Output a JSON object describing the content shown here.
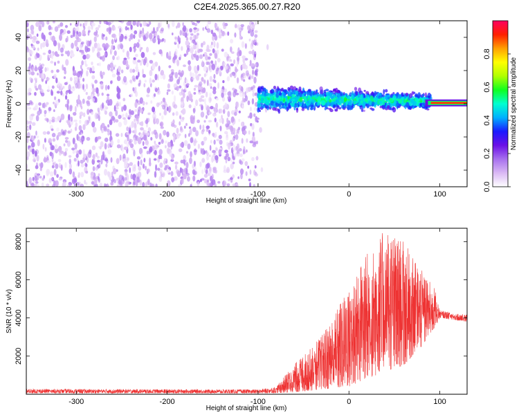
{
  "title": "C2E4.2025.365.00.27.R20",
  "chart_data": [
    {
      "type": "heatmap",
      "name": "spectrogram",
      "xlabel": "Height of straight line (km)",
      "ylabel": "Frequency (Hz)",
      "xlim": [
        -355,
        130
      ],
      "ylim": [
        -50,
        50
      ],
      "xticks": [
        -300,
        -200,
        -100,
        0,
        100
      ],
      "yticks": [
        -40,
        -20,
        0,
        20,
        40
      ],
      "colorbar": {
        "label": "Normalized spectral amplitude",
        "range": [
          0,
          1
        ],
        "ticks": [
          0.0,
          0.2,
          0.4,
          0.6,
          0.8
        ],
        "colormap": [
          "#ffffff",
          "#d9b8f4",
          "#a770ee",
          "#6a0fe6",
          "#1a1aff",
          "#00b0ff",
          "#00ffd0",
          "#10ff20",
          "#b0ff00",
          "#ffff00",
          "#ffa000",
          "#ff2000",
          "#ff0060"
        ]
      },
      "regions": [
        {
          "name": "noise",
          "x_range": [
            -355,
            -100
          ],
          "freq_range": [
            -50,
            50
          ],
          "amplitude": 0.08
        },
        {
          "name": "signal",
          "x_range": [
            -100,
            90
          ],
          "freq_center": 3,
          "freq_half_width": 7,
          "amplitude": 0.3
        },
        {
          "name": "tone",
          "x_range": [
            90,
            130
          ],
          "freq_center": 0.5,
          "amplitude": 0.9
        }
      ]
    },
    {
      "type": "line",
      "name": "snr",
      "xlabel": "Height of straight line (km)",
      "ylabel": "SNR (10 * v/v)",
      "xlim": [
        -355,
        130
      ],
      "ylim": [
        0,
        8700
      ],
      "xticks": [
        -300,
        -200,
        -100,
        0,
        100
      ],
      "yticks": [
        2000,
        4000,
        6000,
        8000
      ],
      "color": "#ee3333",
      "envelope": [
        {
          "x": -355,
          "low": 50,
          "high": 280
        },
        {
          "x": -100,
          "low": 50,
          "high": 250
        },
        {
          "x": -80,
          "low": 60,
          "high": 400
        },
        {
          "x": -60,
          "low": 100,
          "high": 1600
        },
        {
          "x": -40,
          "low": 200,
          "high": 2500
        },
        {
          "x": -20,
          "low": 300,
          "high": 3800
        },
        {
          "x": 0,
          "low": 400,
          "high": 5800
        },
        {
          "x": 20,
          "low": 800,
          "high": 7500
        },
        {
          "x": 40,
          "low": 1200,
          "high": 8700
        },
        {
          "x": 60,
          "low": 1500,
          "high": 8000
        },
        {
          "x": 80,
          "low": 2500,
          "high": 6500
        },
        {
          "x": 95,
          "low": 3500,
          "high": 5500
        },
        {
          "x": 100,
          "low": 4000,
          "high": 4400
        },
        {
          "x": 130,
          "low": 3800,
          "high": 4150
        }
      ]
    }
  ]
}
